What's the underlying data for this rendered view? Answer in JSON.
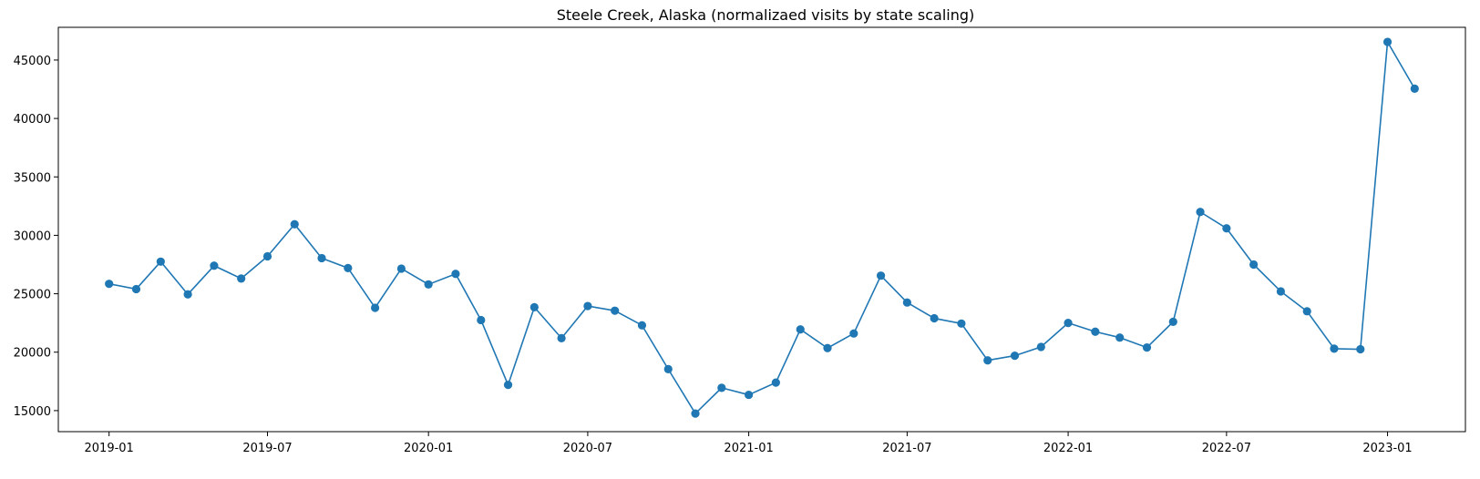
{
  "chart_data": {
    "type": "line",
    "title": "Steele Creek, Alaska (normalizaed visits by state scaling)",
    "xlabel": "",
    "ylabel": "",
    "x_ticks": [
      "2019-01",
      "2019-07",
      "2020-01",
      "2020-07",
      "2021-01",
      "2021-07",
      "2022-01",
      "2022-07",
      "2023-01"
    ],
    "y_ticks": [
      15000,
      20000,
      25000,
      30000,
      35000,
      40000,
      45000
    ],
    "xlim": [
      "2018-11-04",
      "2023-03-31"
    ],
    "ylim": [
      13200,
      47800
    ],
    "grid": false,
    "legend": "none",
    "color": "#1f77b4",
    "marker": "circle",
    "series": [
      {
        "x": [
          "2019-01",
          "2019-02",
          "2019-03",
          "2019-04",
          "2019-05",
          "2019-06",
          "2019-07",
          "2019-08",
          "2019-09",
          "2019-10",
          "2019-11",
          "2019-12",
          "2020-01",
          "2020-02",
          "2020-03",
          "2020-04",
          "2020-05",
          "2020-06",
          "2020-07",
          "2020-08",
          "2020-09",
          "2020-10",
          "2020-11",
          "2020-12",
          "2021-01",
          "2021-02",
          "2021-03",
          "2021-04",
          "2021-05",
          "2021-06",
          "2021-07",
          "2021-08",
          "2021-09",
          "2021-10",
          "2021-11",
          "2021-12",
          "2022-01",
          "2022-02",
          "2022-03",
          "2022-04",
          "2022-05",
          "2022-06",
          "2022-07",
          "2022-08",
          "2022-09",
          "2022-10",
          "2022-11",
          "2022-12",
          "2023-01",
          "2023-02"
        ],
        "values": [
          25850,
          25400,
          27750,
          24950,
          27400,
          26300,
          28200,
          30950,
          28050,
          27200,
          23800,
          27150,
          25800,
          26700,
          22750,
          17200,
          23850,
          21200,
          23950,
          23550,
          22300,
          18550,
          14750,
          16950,
          16350,
          17400,
          21950,
          20350,
          21600,
          26550,
          24250,
          22900,
          22450,
          19300,
          19700,
          20450,
          22500,
          21750,
          21250,
          20400,
          22600,
          32000,
          30600,
          27500,
          25200,
          23500,
          20300,
          20250,
          46550,
          42550
        ]
      }
    ]
  }
}
